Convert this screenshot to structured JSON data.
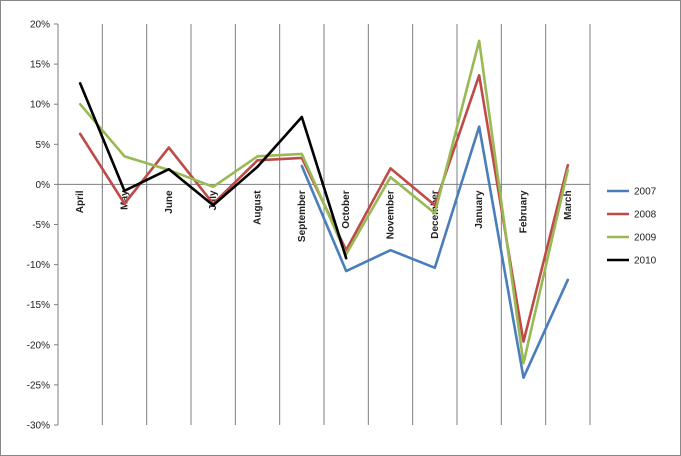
{
  "chart_data": {
    "type": "line",
    "title": "",
    "xlabel": "",
    "ylabel": "",
    "categories": [
      "April",
      "May",
      "June",
      "July",
      "August",
      "September",
      "October",
      "November",
      "December",
      "January",
      "February",
      "March"
    ],
    "ylim": [
      -30,
      20
    ],
    "yticks": [
      20,
      15,
      10,
      5,
      0,
      -5,
      -10,
      -15,
      -20,
      -25,
      -30
    ],
    "ytick_labels": [
      "20%",
      "15%",
      "10%",
      "5%",
      "0%",
      "-5%",
      "-10%",
      "-15%",
      "-20%",
      "-25%",
      "-30%"
    ],
    "grid": "vertical",
    "legend_position": "right",
    "series": [
      {
        "name": "2007",
        "color": "#4a7ebb",
        "values": [
          null,
          null,
          null,
          null,
          null,
          2.3,
          -10.8,
          -8.2,
          -10.4,
          7.2,
          -24.1,
          -11.9
        ]
      },
      {
        "name": "2008",
        "color": "#be4b48",
        "values": [
          6.3,
          -2.4,
          4.6,
          -2.4,
          3.0,
          3.3,
          -8.2,
          2.0,
          -2.6,
          13.6,
          -19.6,
          2.4
        ]
      },
      {
        "name": "2009",
        "color": "#98b954",
        "values": [
          10.0,
          3.5,
          1.8,
          -0.3,
          3.5,
          3.8,
          -8.7,
          0.9,
          -3.6,
          17.9,
          -22.3,
          1.8
        ]
      },
      {
        "name": "2010",
        "color": "#000000",
        "values": [
          12.6,
          -0.8,
          1.9,
          -2.6,
          2.2,
          8.4,
          -9.2,
          null,
          null,
          null,
          null,
          null
        ]
      }
    ]
  }
}
